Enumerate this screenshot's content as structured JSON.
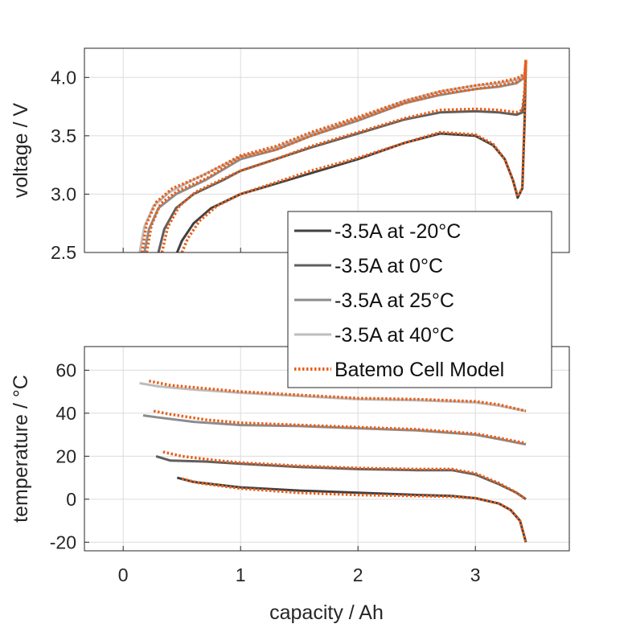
{
  "colors": {
    "series": [
      "#404040",
      "#5e5e5e",
      "#8c8c8c",
      "#bdbdbd"
    ],
    "model": "#e8601c",
    "axis": "#262626",
    "grid": "#dcdcdc"
  },
  "legend": {
    "entries": [
      "-3.5A at -20°C",
      "-3.5A at 0°C",
      "-3.5A at 25°C",
      "-3.5A at 40°C",
      "Batemo Cell Model"
    ],
    "placement": "overlapping top-right of lower panel"
  },
  "chart_data": [
    {
      "type": "line",
      "title": "",
      "xlabel": "",
      "ylabel": "voltage / V",
      "xlim": [
        -0.33,
        3.8
      ],
      "ylim": [
        2.5,
        4.25
      ],
      "xticks": [
        0,
        1,
        2,
        3
      ],
      "yticks": [
        2.5,
        3.0,
        3.5,
        4.0
      ],
      "ytick_labels": [
        "2.5",
        "3.0",
        "3.5",
        "4.0"
      ],
      "grid": true,
      "series": [
        {
          "name": "-3.5A at -20°C",
          "x": [
            0.46,
            0.5,
            0.6,
            0.75,
            1.0,
            1.3,
            1.6,
            2.0,
            2.4,
            2.7,
            3.0,
            3.15,
            3.25,
            3.32,
            3.36,
            3.4,
            3.42,
            3.43
          ],
          "y": [
            2.5,
            2.6,
            2.75,
            2.88,
            3.0,
            3.09,
            3.18,
            3.3,
            3.44,
            3.52,
            3.5,
            3.42,
            3.3,
            3.12,
            2.97,
            3.05,
            3.65,
            4.15
          ]
        },
        {
          "name": "-3.5A at 0°C",
          "x": [
            0.3,
            0.35,
            0.45,
            0.6,
            0.85,
            1.0,
            1.3,
            1.6,
            2.0,
            2.4,
            2.7,
            3.0,
            3.2,
            3.35,
            3.4,
            3.42,
            3.43
          ],
          "y": [
            2.5,
            2.7,
            2.88,
            3.0,
            3.12,
            3.2,
            3.3,
            3.4,
            3.52,
            3.64,
            3.7,
            3.71,
            3.7,
            3.68,
            3.7,
            3.85,
            4.15
          ]
        },
        {
          "name": "-3.5A at 25°C",
          "x": [
            0.18,
            0.22,
            0.3,
            0.45,
            0.7,
            1.0,
            1.3,
            1.6,
            2.0,
            2.4,
            2.7,
            3.0,
            3.2,
            3.35,
            3.42,
            3.43
          ],
          "y": [
            2.5,
            2.7,
            2.88,
            3.0,
            3.12,
            3.3,
            3.38,
            3.5,
            3.63,
            3.78,
            3.85,
            3.9,
            3.92,
            3.95,
            4.0,
            4.15
          ]
        },
        {
          "name": "-3.5A at 40°C",
          "x": [
            0.14,
            0.18,
            0.26,
            0.4,
            0.65,
            1.0,
            1.3,
            1.6,
            2.0,
            2.4,
            2.7,
            3.0,
            3.2,
            3.35,
            3.42,
            3.43
          ],
          "y": [
            2.5,
            2.72,
            2.9,
            3.02,
            3.15,
            3.32,
            3.4,
            3.52,
            3.65,
            3.8,
            3.88,
            3.93,
            3.95,
            3.98,
            4.02,
            4.15
          ]
        },
        {
          "name": "Batemo Cell Model",
          "x": [
            0.5,
            0.55,
            0.65,
            0.8,
            1.0,
            1.3,
            1.6,
            2.0,
            2.4,
            2.7,
            3.0,
            3.15,
            3.25,
            3.32,
            3.36,
            3.4,
            3.42,
            3.43
          ],
          "y": [
            2.5,
            2.62,
            2.77,
            2.9,
            3.0,
            3.1,
            3.2,
            3.31,
            3.44,
            3.53,
            3.51,
            3.43,
            3.3,
            3.12,
            2.98,
            3.05,
            3.65,
            4.15
          ]
        },
        {
          "name": "Batemo Cell Model",
          "x": [
            0.33,
            0.38,
            0.48,
            0.62,
            0.85,
            1.0,
            1.3,
            1.6,
            2.0,
            2.4,
            2.7,
            3.0,
            3.2,
            3.35,
            3.4,
            3.42,
            3.43
          ],
          "y": [
            2.5,
            2.72,
            2.9,
            3.02,
            3.13,
            3.2,
            3.3,
            3.41,
            3.53,
            3.65,
            3.72,
            3.73,
            3.72,
            3.7,
            3.72,
            3.9,
            4.15
          ]
        },
        {
          "name": "Batemo Cell Model",
          "x": [
            0.2,
            0.24,
            0.32,
            0.47,
            0.72,
            1.0,
            1.3,
            1.6,
            2.0,
            2.4,
            2.7,
            3.0,
            3.2,
            3.35,
            3.42,
            3.43
          ],
          "y": [
            2.5,
            2.73,
            2.92,
            3.03,
            3.14,
            3.32,
            3.38,
            3.5,
            3.64,
            3.78,
            3.86,
            3.9,
            3.93,
            3.96,
            4.0,
            4.15
          ]
        },
        {
          "name": "Batemo Cell Model",
          "x": [
            0.16,
            0.2,
            0.28,
            0.42,
            0.68,
            1.0,
            1.3,
            1.6,
            2.0,
            2.4,
            2.7,
            3.0,
            3.2,
            3.35,
            3.42,
            3.43
          ],
          "y": [
            2.5,
            2.75,
            2.93,
            3.05,
            3.16,
            3.33,
            3.41,
            3.53,
            3.66,
            3.8,
            3.88,
            3.93,
            3.96,
            3.99,
            4.03,
            4.15
          ]
        }
      ]
    },
    {
      "type": "line",
      "title": "",
      "xlabel": "capacity / Ah",
      "ylabel": "temperature / °C",
      "xlim": [
        -0.33,
        3.8
      ],
      "ylim": [
        -24,
        71
      ],
      "xticks": [
        0,
        1,
        2,
        3
      ],
      "xtick_labels": [
        "0",
        "1",
        "2",
        "3"
      ],
      "yticks": [
        -20,
        0,
        20,
        40,
        60
      ],
      "ytick_labels": [
        "-20",
        "0",
        "20",
        "40",
        "60"
      ],
      "grid": true,
      "series": [
        {
          "name": "-3.5A at -20°C",
          "x": [
            0.46,
            0.6,
            1.0,
            1.5,
            2.0,
            2.5,
            2.8,
            3.0,
            3.2,
            3.3,
            3.38,
            3.43
          ],
          "y": [
            10,
            8,
            5.5,
            4,
            3,
            2,
            1.5,
            0.5,
            -2,
            -5,
            -10,
            -20
          ]
        },
        {
          "name": "-3.5A at 0°C",
          "x": [
            0.28,
            0.4,
            0.7,
            1.0,
            1.5,
            2.0,
            2.5,
            2.8,
            3.0,
            3.2,
            3.35,
            3.43
          ],
          "y": [
            20,
            18,
            17.5,
            16.5,
            15,
            14,
            13.5,
            13.5,
            11.5,
            7,
            3,
            0
          ]
        },
        {
          "name": "-3.5A at 25°C",
          "x": [
            0.17,
            0.3,
            0.6,
            1.0,
            1.5,
            2.0,
            2.5,
            3.0,
            3.2,
            3.43
          ],
          "y": [
            39,
            38,
            36,
            34.5,
            34,
            33,
            32,
            30,
            28,
            25.5
          ]
        },
        {
          "name": "-3.5A at 40°C",
          "x": [
            0.14,
            0.3,
            0.6,
            1.0,
            1.5,
            2.0,
            2.5,
            3.0,
            3.2,
            3.43
          ],
          "y": [
            54,
            52.5,
            51,
            49.5,
            48,
            46.5,
            46,
            45,
            43.5,
            41
          ]
        },
        {
          "name": "Batemo Cell Model",
          "x": [
            0.5,
            0.65,
            1.0,
            1.5,
            2.0,
            2.5,
            2.8,
            3.0,
            3.2,
            3.3,
            3.38,
            3.43
          ],
          "y": [
            9.5,
            7.5,
            5,
            3,
            2,
            1.5,
            1.2,
            0.5,
            -2,
            -5,
            -10,
            -20
          ]
        },
        {
          "name": "Batemo Cell Model",
          "x": [
            0.34,
            0.5,
            0.8,
            1.0,
            1.5,
            2.0,
            2.5,
            2.8,
            3.0,
            3.2,
            3.35,
            3.43
          ],
          "y": [
            22,
            20,
            18,
            17,
            15.5,
            14.5,
            14,
            14,
            12,
            7.5,
            3,
            0
          ]
        },
        {
          "name": "Batemo Cell Model",
          "x": [
            0.26,
            0.4,
            0.7,
            1.0,
            1.5,
            2.0,
            2.5,
            3.0,
            3.2,
            3.43
          ],
          "y": [
            41,
            39.5,
            37,
            35.5,
            34.5,
            33.5,
            32.5,
            30.5,
            28.5,
            26
          ]
        },
        {
          "name": "Batemo Cell Model",
          "x": [
            0.22,
            0.4,
            0.7,
            1.0,
            1.5,
            2.0,
            2.5,
            3.0,
            3.2,
            3.43
          ],
          "y": [
            55,
            53,
            51.5,
            50,
            48.5,
            47,
            46.5,
            45.5,
            44,
            41
          ]
        }
      ]
    }
  ]
}
